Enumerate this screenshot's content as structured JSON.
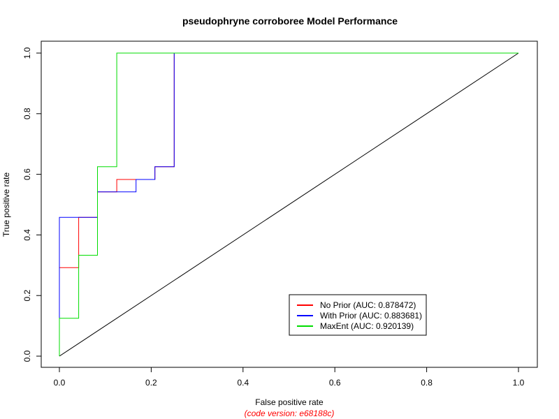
{
  "chart_data": {
    "type": "line",
    "title": "pseudophryne corroboree Model Performance",
    "xlabel": "False positive rate",
    "ylabel": "True positive rate",
    "caption": "(code version: e68188c)",
    "xlim": [
      0,
      1
    ],
    "ylim": [
      0,
      1
    ],
    "x_ticks": [
      "0.0",
      "0.2",
      "0.4",
      "0.6",
      "0.8",
      "1.0"
    ],
    "y_ticks": [
      "0.0",
      "0.2",
      "0.4",
      "0.6",
      "0.8",
      "1.0"
    ],
    "grid": false,
    "legend_position": "bottom-right",
    "diagonal": {
      "x": [
        0,
        1
      ],
      "y": [
        0,
        1
      ],
      "color": "#000000"
    },
    "series": [
      {
        "name": "No Prior (AUC: 0.878472)",
        "color": "#ff0000",
        "x": [
          0,
          0,
          0,
          0.042,
          0.042,
          0.083,
          0.083,
          0.125,
          0.125,
          0.167,
          0.208,
          0.208,
          0.25,
          0.25,
          1
        ],
        "y": [
          0,
          0.125,
          0.292,
          0.292,
          0.458,
          0.458,
          0.542,
          0.542,
          0.583,
          0.583,
          0.583,
          0.625,
          0.625,
          1,
          1
        ]
      },
      {
        "name": "With Prior (AUC: 0.883681)",
        "color": "#0000ff",
        "x": [
          0,
          0,
          0,
          0.083,
          0.083,
          0.167,
          0.167,
          0.208,
          0.208,
          0.25,
          0.25,
          1
        ],
        "y": [
          0,
          0.125,
          0.458,
          0.458,
          0.542,
          0.542,
          0.583,
          0.583,
          0.625,
          0.625,
          1,
          1
        ]
      },
      {
        "name": "MaxEnt (AUC: 0.920139)",
        "color": "#00dd00",
        "x": [
          0,
          0,
          0.042,
          0.042,
          0.083,
          0.083,
          0.125,
          0.125,
          1
        ],
        "y": [
          0,
          0.125,
          0.125,
          0.333,
          0.333,
          0.625,
          0.625,
          1,
          1
        ]
      }
    ]
  }
}
